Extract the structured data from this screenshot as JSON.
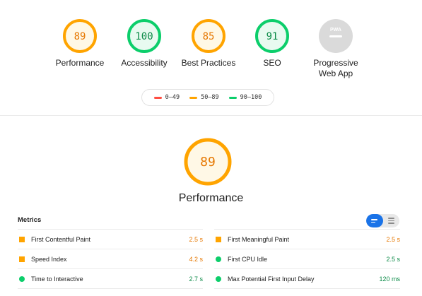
{
  "summary_gauges": [
    {
      "label": "Performance",
      "score": "89",
      "status": "average"
    },
    {
      "label": "Accessibility",
      "score": "100",
      "status": "pass"
    },
    {
      "label": "Best Practices",
      "score": "85",
      "status": "average"
    },
    {
      "label": "SEO",
      "score": "91",
      "status": "pass"
    },
    {
      "label": "Progressive Web App",
      "badge": "PWA",
      "status": "na"
    }
  ],
  "legend": [
    {
      "range": "0–49",
      "color": "#ff4e42"
    },
    {
      "range": "50–89",
      "color": "#ffa400"
    },
    {
      "range": "90–100",
      "color": "#0cce6b"
    }
  ],
  "performance": {
    "score": "89",
    "title": "Performance",
    "metrics_title": "Metrics",
    "metrics": [
      {
        "label": "First Contentful Paint",
        "value": "2.5 s",
        "status": "average",
        "icon": "square-icon"
      },
      {
        "label": "First Meaningful Paint",
        "value": "2.5 s",
        "status": "average",
        "icon": "square-icon"
      },
      {
        "label": "Speed Index",
        "value": "4.2 s",
        "status": "average",
        "icon": "square-icon"
      },
      {
        "label": "First CPU Idle",
        "value": "2.5 s",
        "status": "pass",
        "icon": "circle-icon"
      },
      {
        "label": "Time to Interactive",
        "value": "2.7 s",
        "status": "pass",
        "icon": "circle-icon"
      },
      {
        "label": "Max Potential First Input Delay",
        "value": "120 ms",
        "status": "pass",
        "icon": "circle-icon"
      }
    ]
  },
  "colors": {
    "average": "#ffa400",
    "average_fill": "#fff8e6",
    "average_text": "#e67700",
    "pass": "#0cce6b",
    "pass_fill": "#e8faf0",
    "pass_text": "#0b8a47",
    "fail": "#ff4e42",
    "na": "#c4c4c4",
    "toggle_active": "#1a73e8"
  }
}
